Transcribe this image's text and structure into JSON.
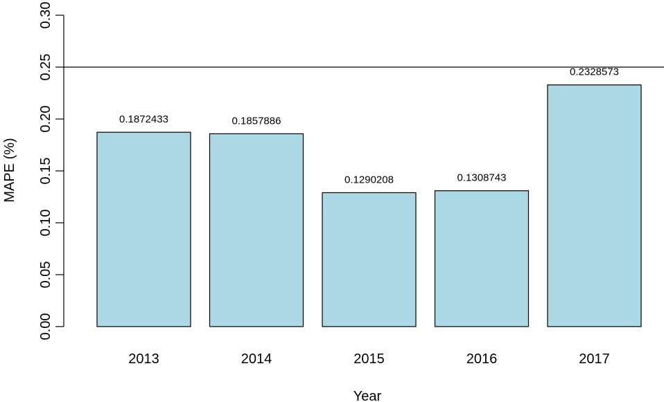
{
  "chart_data": {
    "type": "bar",
    "title": "",
    "xlabel": "Year",
    "ylabel": "MAPE (%)",
    "categories": [
      "2013",
      "2014",
      "2015",
      "2016",
      "2017"
    ],
    "values": [
      0.1872433,
      0.1857886,
      0.1290208,
      0.1308743,
      0.2328573
    ],
    "value_labels": [
      "0.1872433",
      "0.1857886",
      "0.1290208",
      "0.1308743",
      "0.2328573"
    ],
    "ylim": [
      0,
      0.3
    ],
    "yticks": [
      0.0,
      0.05,
      0.1,
      0.15,
      0.2,
      0.25,
      0.3
    ],
    "ytick_labels": [
      "0.00",
      "0.05",
      "0.10",
      "0.15",
      "0.20",
      "0.25",
      "0.30"
    ],
    "reference_line": 0.25,
    "bar_color": "#add8e6",
    "bar_edge_color": "#000000",
    "grid": false,
    "legend": "none"
  }
}
